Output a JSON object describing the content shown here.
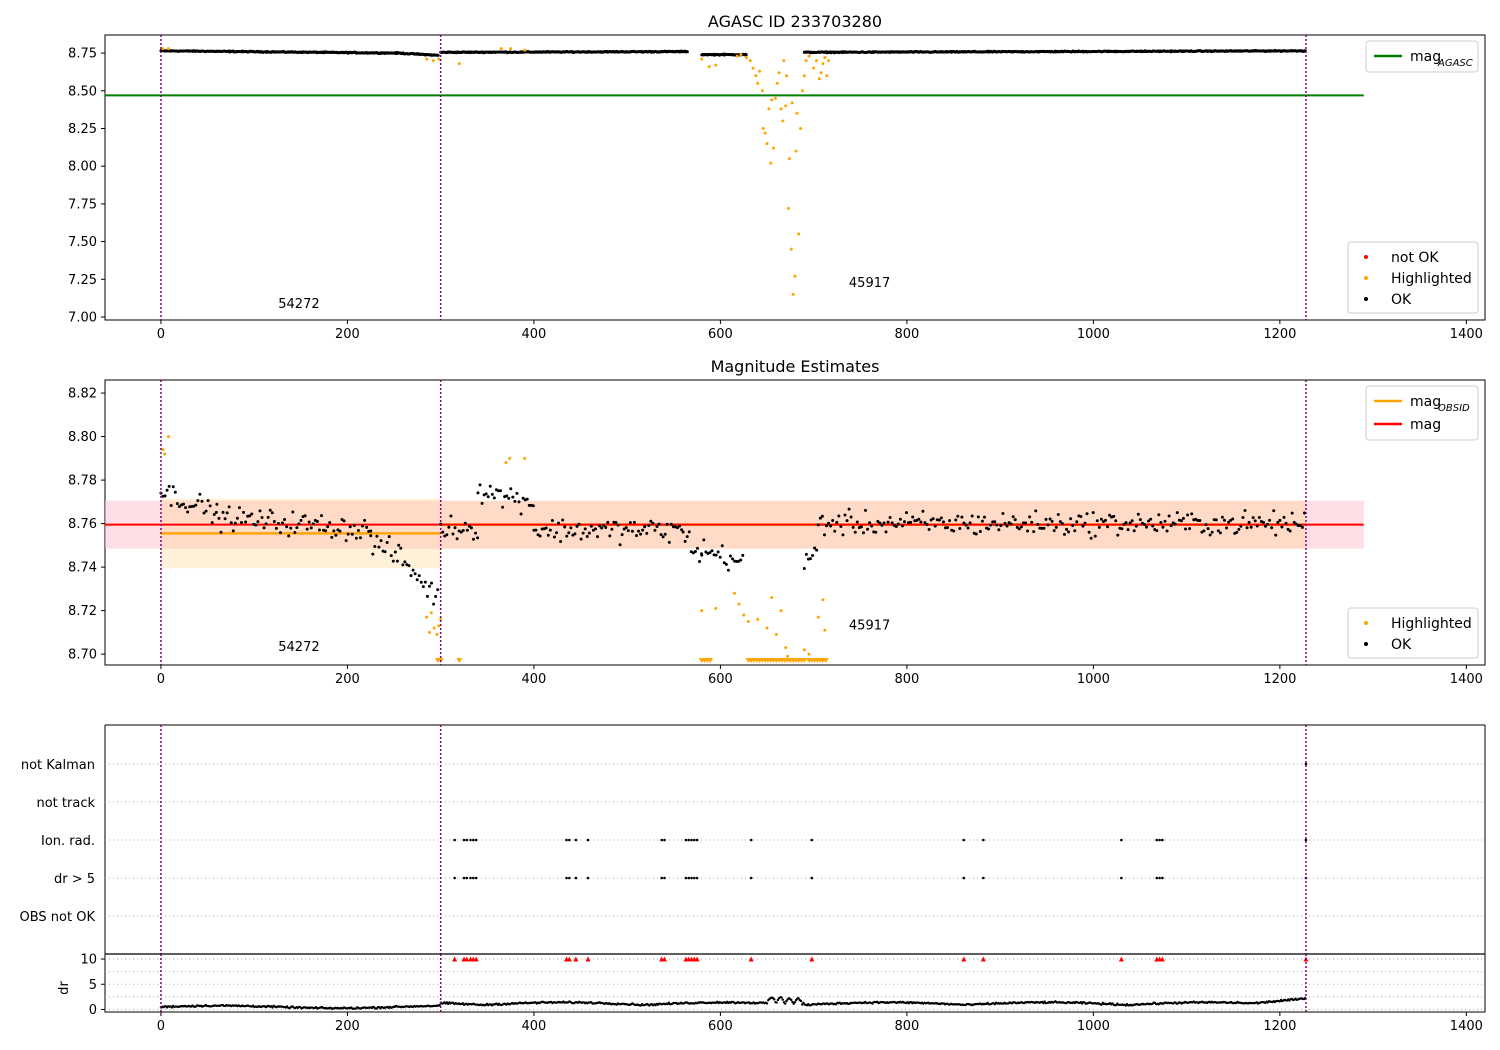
{
  "figure": {
    "title_top": "AGASC ID 233703280",
    "title_middle": "Magnitude Estimates"
  },
  "colors": {
    "ok": "#000000",
    "highlighted": "#ffa500",
    "not_ok": "#ff0000",
    "agasc_line": "#008000",
    "mag_line": "#ff0000",
    "obsid_line": "#ffa500",
    "mag_band": "#ffc0cb",
    "obsid_band": "#ffd280",
    "obs_boundary": "#800080"
  },
  "chart_data": [
    {
      "id": "agasc",
      "type": "scatter",
      "title": "AGASC ID 233703280",
      "xlim": [
        -60,
        1420
      ],
      "ylim": [
        6.98,
        8.87
      ],
      "xticks": [
        0,
        200,
        400,
        600,
        800,
        1000,
        1200,
        1400
      ],
      "yticks": [
        7.0,
        7.25,
        7.5,
        7.75,
        8.0,
        8.25,
        8.5,
        8.75
      ],
      "obs_boundaries": [
        0,
        300,
        1228
      ],
      "obs_labels": [
        {
          "text": "54272",
          "x": 148,
          "y": 7.06
        },
        {
          "text": "45917",
          "x": 760,
          "y": 7.2
        }
      ],
      "hlines": [
        {
          "name": "mag_AGASC",
          "y": 8.47,
          "x0": -60,
          "x1": 1290
        }
      ],
      "legend_lines": [
        {
          "main": "mag",
          "sub": "AGASC",
          "color": "#008000"
        }
      ],
      "legend_points": [
        "not OK",
        "Highlighted",
        "OK"
      ],
      "baseline_segments": [
        [
          0,
          255,
          8.765,
          8.75
        ],
        [
          255,
          298,
          8.75,
          8.735
        ],
        [
          300,
          565,
          8.755,
          8.76
        ],
        [
          580,
          628,
          8.74,
          8.74
        ],
        [
          690,
          1228,
          8.755,
          8.765
        ]
      ],
      "highlighted_points": [
        [
          2,
          8.78
        ],
        [
          8,
          8.78
        ],
        [
          285,
          8.71
        ],
        [
          292,
          8.7
        ],
        [
          298,
          8.71
        ],
        [
          320,
          8.68
        ],
        [
          365,
          8.78
        ],
        [
          375,
          8.78
        ],
        [
          390,
          8.77
        ],
        [
          580,
          8.71
        ],
        [
          588,
          8.66
        ],
        [
          595,
          8.67
        ],
        [
          618,
          8.73
        ],
        [
          622,
          8.74
        ],
        [
          628,
          8.72
        ],
        [
          632,
          8.7
        ],
        [
          635,
          8.65
        ],
        [
          638,
          8.6
        ],
        [
          640,
          8.55
        ],
        [
          642,
          8.63
        ],
        [
          645,
          8.5
        ],
        [
          646,
          8.25
        ],
        [
          648,
          8.22
        ],
        [
          650,
          8.15
        ],
        [
          652,
          8.38
        ],
        [
          654,
          8.02
        ],
        [
          655,
          8.44
        ],
        [
          657,
          8.12
        ],
        [
          659,
          8.45
        ],
        [
          661,
          8.55
        ],
        [
          663,
          8.62
        ],
        [
          665,
          8.38
        ],
        [
          667,
          8.3
        ],
        [
          668,
          8.7
        ],
        [
          670,
          8.4
        ],
        [
          671,
          8.6
        ],
        [
          673,
          7.72
        ],
        [
          674,
          8.05
        ],
        [
          676,
          7.45
        ],
        [
          677,
          8.42
        ],
        [
          678,
          7.15
        ],
        [
          680,
          7.27
        ],
        [
          681,
          8.1
        ],
        [
          682,
          8.35
        ],
        [
          684,
          7.55
        ],
        [
          686,
          8.25
        ],
        [
          688,
          8.5
        ],
        [
          690,
          8.6
        ],
        [
          692,
          8.7
        ],
        [
          695,
          8.73
        ],
        [
          700,
          8.65
        ],
        [
          703,
          8.7
        ],
        [
          706,
          8.58
        ],
        [
          708,
          8.62
        ],
        [
          710,
          8.68
        ],
        [
          712,
          8.72
        ],
        [
          714,
          8.6
        ],
        [
          716,
          8.7
        ]
      ]
    },
    {
      "id": "estimates",
      "type": "scatter",
      "title": "Magnitude Estimates",
      "xlim": [
        -60,
        1420
      ],
      "ylim": [
        8.695,
        8.826
      ],
      "xticks": [
        0,
        200,
        400,
        600,
        800,
        1000,
        1200,
        1400
      ],
      "yticks": [
        8.7,
        8.72,
        8.74,
        8.76,
        8.78,
        8.8,
        8.82
      ],
      "obs_boundaries": [
        0,
        300,
        1228
      ],
      "obs_labels": [
        {
          "text": "54272",
          "x": 148,
          "y": 8.7
        },
        {
          "text": "45917",
          "x": 760,
          "y": 8.71
        }
      ],
      "mag": {
        "value": 8.7595,
        "band": [
          8.7485,
          8.7705
        ],
        "x0": -60,
        "x1": 1290
      },
      "obsid_segments": [
        {
          "value": 8.7555,
          "band": [
            8.7395,
            8.7715
          ],
          "x0": 0,
          "x1": 300
        },
        {
          "value": 8.7595,
          "band": [
            8.7485,
            8.7705
          ],
          "x0": 300,
          "x1": 1228
        }
      ],
      "legend_lines": [
        {
          "main": "mag",
          "sub": "OBSID",
          "color": "#ffa500"
        },
        {
          "main": "mag",
          "sub": "",
          "color": "#ff0000"
        }
      ],
      "legend_points": [
        "Highlighted",
        "OK"
      ],
      "baseline_segments": [
        [
          0,
          60,
          8.775,
          8.765
        ],
        [
          60,
          225,
          8.763,
          8.757
        ],
        [
          225,
          255,
          8.752,
          8.745
        ],
        [
          255,
          298,
          8.745,
          8.725
        ],
        [
          300,
          340,
          8.758,
          8.758
        ],
        [
          340,
          400,
          8.775,
          8.77
        ],
        [
          400,
          560,
          8.757,
          8.757
        ],
        [
          560,
          580,
          8.755,
          8.745
        ],
        [
          580,
          625,
          8.748,
          8.742
        ],
        [
          690,
          705,
          8.74,
          8.75
        ],
        [
          705,
          1228,
          8.76,
          8.76
        ]
      ],
      "highlighted_points": [
        [
          2,
          8.794
        ],
        [
          4,
          8.792
        ],
        [
          8,
          8.8
        ],
        [
          285,
          8.717
        ],
        [
          288,
          8.71
        ],
        [
          290,
          8.719
        ],
        [
          293,
          8.712
        ],
        [
          296,
          8.709
        ],
        [
          298,
          8.713
        ],
        [
          300,
          8.716
        ],
        [
          370,
          8.788
        ],
        [
          374,
          8.79
        ],
        [
          390,
          8.79
        ],
        [
          580,
          8.72
        ],
        [
          595,
          8.721
        ],
        [
          615,
          8.728
        ],
        [
          620,
          8.723
        ],
        [
          625,
          8.718
        ],
        [
          630,
          8.715
        ],
        [
          640,
          8.716
        ],
        [
          650,
          8.712
        ],
        [
          655,
          8.726
        ],
        [
          660,
          8.709
        ],
        [
          665,
          8.72
        ],
        [
          670,
          8.703
        ],
        [
          672,
          8.699
        ],
        [
          690,
          8.702
        ],
        [
          695,
          8.7
        ],
        [
          705,
          8.717
        ],
        [
          710,
          8.725
        ],
        [
          712,
          8.711
        ]
      ],
      "clipped_markers": [
        [
          297,
          300
        ],
        [
          320,
          320
        ],
        [
          580,
          590
        ],
        [
          630,
          690
        ],
        [
          695,
          715
        ]
      ]
    },
    {
      "id": "flags",
      "type": "scatter",
      "xlim": [
        -60,
        1420
      ],
      "categories": [
        "not Kalman",
        "not track",
        "Ion. rad.",
        "dr > 5",
        "OBS not OK"
      ],
      "obs_boundaries": [
        0,
        300,
        1228
      ],
      "flag_x": [
        315,
        325,
        328,
        332,
        335,
        338,
        435,
        438,
        445,
        458,
        537,
        540,
        563,
        566,
        569,
        572,
        575,
        633,
        698,
        861,
        882,
        1030,
        1068,
        1071,
        1074,
        1228
      ],
      "not_kalman_x": [
        1228
      ]
    },
    {
      "id": "dr",
      "type": "scatter",
      "xlim": [
        -60,
        1420
      ],
      "ylim": [
        -0.5,
        11
      ],
      "xticks": [
        0,
        200,
        400,
        600,
        800,
        1000,
        1200,
        1400
      ],
      "yticks": [
        0,
        5,
        10
      ],
      "ylabel": "dr",
      "obs_boundaries": [
        0,
        300,
        1228
      ],
      "hline": 10,
      "clipped_x": [
        315,
        325,
        328,
        332,
        335,
        338,
        435,
        438,
        445,
        458,
        537,
        540,
        563,
        566,
        569,
        572,
        575,
        633,
        698,
        861,
        882,
        1030,
        1068,
        1071,
        1074,
        1228
      ]
    }
  ]
}
